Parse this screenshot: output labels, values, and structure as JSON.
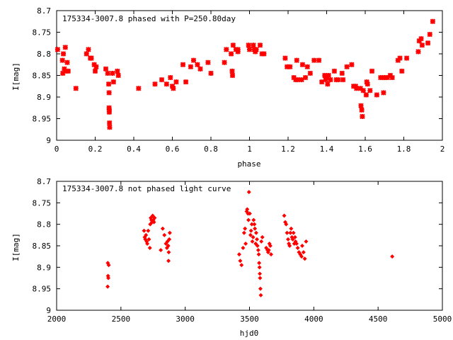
{
  "colors": {
    "series": "#ff0000",
    "axis": "#000000",
    "background": "#ffffff"
  },
  "chart_data": [
    {
      "type": "scatter",
      "title": "175334-3007.8 phased with P=250.80day",
      "xlabel": "phase",
      "ylabel": "I[mag]",
      "xlim": [
        0,
        2
      ],
      "ylim": [
        9,
        8.7
      ],
      "y_inverted": true,
      "grid": false,
      "marker": "cross",
      "x_ticks": [
        "0",
        "0.2",
        "0.4",
        "0.6",
        "0.8",
        "1",
        "1.2",
        "1.4",
        "1.6",
        "1.8",
        "2"
      ],
      "y_ticks": [
        "8.7",
        "8.75",
        "8.8",
        "8.85",
        "8.9",
        "8.95",
        "9"
      ],
      "points": [
        [
          0.005,
          8.79
        ],
        [
          0.03,
          8.815
        ],
        [
          0.032,
          8.845
        ],
        [
          0.035,
          8.8
        ],
        [
          0.04,
          8.835
        ],
        [
          0.045,
          8.785
        ],
        [
          0.05,
          8.84
        ],
        [
          0.055,
          8.82
        ],
        [
          0.06,
          8.84
        ],
        [
          0.1,
          8.88
        ],
        [
          0.155,
          8.8
        ],
        [
          0.165,
          8.79
        ],
        [
          0.175,
          8.81
        ],
        [
          0.18,
          8.81
        ],
        [
          0.195,
          8.825
        ],
        [
          0.2,
          8.84
        ],
        [
          0.205,
          8.83
        ],
        [
          0.255,
          8.835
        ],
        [
          0.265,
          8.845
        ],
        [
          0.27,
          8.87
        ],
        [
          0.272,
          8.89
        ],
        [
          0.272,
          8.925
        ],
        [
          0.273,
          8.93
        ],
        [
          0.273,
          8.935
        ],
        [
          0.274,
          8.96
        ],
        [
          0.275,
          8.97
        ],
        [
          0.29,
          8.845
        ],
        [
          0.295,
          8.865
        ],
        [
          0.315,
          8.84
        ],
        [
          0.32,
          8.85
        ],
        [
          0.425,
          8.88
        ],
        [
          0.51,
          8.87
        ],
        [
          0.545,
          8.86
        ],
        [
          0.57,
          8.87
        ],
        [
          0.59,
          8.855
        ],
        [
          0.6,
          8.875
        ],
        [
          0.605,
          8.88
        ],
        [
          0.62,
          8.865
        ],
        [
          0.655,
          8.825
        ],
        [
          0.67,
          8.865
        ],
        [
          0.695,
          8.83
        ],
        [
          0.71,
          8.815
        ],
        [
          0.73,
          8.825
        ],
        [
          0.745,
          8.835
        ],
        [
          0.785,
          8.82
        ],
        [
          0.8,
          8.845
        ],
        [
          0.87,
          8.82
        ],
        [
          0.88,
          8.79
        ],
        [
          0.905,
          8.8
        ],
        [
          0.91,
          8.84
        ],
        [
          0.912,
          8.85
        ],
        [
          0.915,
          8.78
        ],
        [
          0.93,
          8.79
        ],
        [
          0.94,
          8.795
        ],
        [
          0.94,
          8.79
        ],
        [
          0.995,
          8.78
        ],
        [
          1.0,
          8.79
        ],
        [
          1.02,
          8.78
        ],
        [
          1.025,
          8.79
        ],
        [
          1.03,
          8.795
        ],
        [
          1.035,
          8.79
        ],
        [
          1.055,
          8.78
        ],
        [
          1.065,
          8.8
        ],
        [
          1.075,
          8.8
        ],
        [
          1.185,
          8.81
        ],
        [
          1.195,
          8.83
        ],
        [
          1.21,
          8.83
        ],
        [
          1.23,
          8.855
        ],
        [
          1.24,
          8.86
        ],
        [
          1.245,
          8.815
        ],
        [
          1.25,
          8.86
        ],
        [
          1.27,
          8.86
        ],
        [
          1.275,
          8.825
        ],
        [
          1.29,
          8.855
        ],
        [
          1.3,
          8.83
        ],
        [
          1.315,
          8.845
        ],
        [
          1.335,
          8.815
        ],
        [
          1.36,
          8.815
        ],
        [
          1.375,
          8.865
        ],
        [
          1.39,
          8.85
        ],
        [
          1.395,
          8.86
        ],
        [
          1.4,
          8.855
        ],
        [
          1.405,
          8.87
        ],
        [
          1.41,
          8.85
        ],
        [
          1.42,
          8.86
        ],
        [
          1.44,
          8.84
        ],
        [
          1.45,
          8.86
        ],
        [
          1.46,
          8.86
        ],
        [
          1.48,
          8.845
        ],
        [
          1.485,
          8.86
        ],
        [
          1.505,
          8.83
        ],
        [
          1.53,
          8.825
        ],
        [
          1.54,
          8.875
        ],
        [
          1.55,
          8.875
        ],
        [
          1.555,
          8.88
        ],
        [
          1.575,
          8.88
        ],
        [
          1.578,
          8.92
        ],
        [
          1.582,
          8.93
        ],
        [
          1.585,
          8.945
        ],
        [
          1.59,
          8.885
        ],
        [
          1.605,
          8.895
        ],
        [
          1.608,
          8.865
        ],
        [
          1.612,
          8.87
        ],
        [
          1.625,
          8.885
        ],
        [
          1.635,
          8.84
        ],
        [
          1.66,
          8.895
        ],
        [
          1.68,
          8.855
        ],
        [
          1.69,
          8.855
        ],
        [
          1.695,
          8.89
        ],
        [
          1.7,
          8.855
        ],
        [
          1.715,
          8.855
        ],
        [
          1.73,
          8.85
        ],
        [
          1.74,
          8.855
        ],
        [
          1.77,
          8.815
        ],
        [
          1.78,
          8.81
        ],
        [
          1.79,
          8.84
        ],
        [
          1.815,
          8.81
        ],
        [
          1.875,
          8.795
        ],
        [
          1.88,
          8.77
        ],
        [
          1.89,
          8.765
        ],
        [
          1.895,
          8.78
        ],
        [
          1.925,
          8.775
        ],
        [
          1.935,
          8.755
        ],
        [
          1.95,
          8.725
        ]
      ]
    },
    {
      "type": "scatter",
      "title": "175334-3007.8 not phased light curve",
      "xlabel": "hjd0",
      "ylabel": "I[mag]",
      "xlim": [
        2000,
        5000
      ],
      "ylim": [
        9,
        8.7
      ],
      "y_inverted": true,
      "grid": false,
      "marker": "small-cross",
      "x_ticks": [
        "2000",
        "2500",
        "3000",
        "3500",
        "4000",
        "4500",
        "5000"
      ],
      "y_ticks": [
        "8.7",
        "8.75",
        "8.8",
        "8.85",
        "8.9",
        "8.95",
        "9"
      ],
      "points": [
        [
          2398,
          8.89
        ],
        [
          2400,
          8.92
        ],
        [
          2402,
          8.925
        ],
        [
          2397,
          8.945
        ],
        [
          2405,
          8.895
        ],
        [
          2680,
          8.815
        ],
        [
          2685,
          8.83
        ],
        [
          2690,
          8.835
        ],
        [
          2695,
          8.825
        ],
        [
          2700,
          8.84
        ],
        [
          2705,
          8.845
        ],
        [
          2712,
          8.815
        ],
        [
          2718,
          8.835
        ],
        [
          2725,
          8.855
        ],
        [
          2728,
          8.8
        ],
        [
          2732,
          8.785
        ],
        [
          2737,
          8.79
        ],
        [
          2742,
          8.795
        ],
        [
          2747,
          8.78
        ],
        [
          2752,
          8.79
        ],
        [
          2757,
          8.795
        ],
        [
          2762,
          8.785
        ],
        [
          2810,
          8.86
        ],
        [
          2825,
          8.81
        ],
        [
          2838,
          8.825
        ],
        [
          2850,
          8.845
        ],
        [
          2858,
          8.855
        ],
        [
          2862,
          8.84
        ],
        [
          2868,
          8.85
        ],
        [
          2872,
          8.865
        ],
        [
          2876,
          8.835
        ],
        [
          2880,
          8.82
        ],
        [
          2870,
          8.885
        ],
        [
          3420,
          8.87
        ],
        [
          3428,
          8.885
        ],
        [
          3438,
          8.895
        ],
        [
          3450,
          8.855
        ],
        [
          3458,
          8.82
        ],
        [
          3465,
          8.81
        ],
        [
          3470,
          8.845
        ],
        [
          3478,
          8.77
        ],
        [
          3482,
          8.765
        ],
        [
          3488,
          8.775
        ],
        [
          3492,
          8.79
        ],
        [
          3496,
          8.725
        ],
        [
          3502,
          8.775
        ],
        [
          3508,
          8.825
        ],
        [
          3512,
          8.815
        ],
        [
          3518,
          8.8
        ],
        [
          3522,
          8.84
        ],
        [
          3528,
          8.83
        ],
        [
          3532,
          8.79
        ],
        [
          3538,
          8.8
        ],
        [
          3542,
          8.81
        ],
        [
          3548,
          8.845
        ],
        [
          3552,
          8.82
        ],
        [
          3558,
          8.835
        ],
        [
          3562,
          8.85
        ],
        [
          3568,
          8.86
        ],
        [
          3572,
          8.87
        ],
        [
          3575,
          8.89
        ],
        [
          3578,
          8.9
        ],
        [
          3580,
          8.915
        ],
        [
          3582,
          8.925
        ],
        [
          3585,
          8.95
        ],
        [
          3588,
          8.965
        ],
        [
          3592,
          8.84
        ],
        [
          3600,
          8.83
        ],
        [
          3630,
          8.855
        ],
        [
          3640,
          8.86
        ],
        [
          3645,
          8.865
        ],
        [
          3650,
          8.86
        ],
        [
          3655,
          8.845
        ],
        [
          3662,
          8.85
        ],
        [
          3668,
          8.87
        ],
        [
          3770,
          8.78
        ],
        [
          3778,
          8.795
        ],
        [
          3785,
          8.8
        ],
        [
          3792,
          8.82
        ],
        [
          3800,
          8.835
        ],
        [
          3806,
          8.845
        ],
        [
          3812,
          8.85
        ],
        [
          3818,
          8.82
        ],
        [
          3824,
          8.81
        ],
        [
          3830,
          8.83
        ],
        [
          3836,
          8.835
        ],
        [
          3842,
          8.82
        ],
        [
          3848,
          8.845
        ],
        [
          3854,
          8.83
        ],
        [
          3858,
          8.84
        ],
        [
          3866,
          8.845
        ],
        [
          3875,
          8.855
        ],
        [
          3885,
          8.865
        ],
        [
          3895,
          8.87
        ],
        [
          3905,
          8.875
        ],
        [
          3910,
          8.85
        ],
        [
          3920,
          8.865
        ],
        [
          3930,
          8.88
        ],
        [
          3940,
          8.84
        ],
        [
          4610,
          8.875
        ]
      ]
    }
  ]
}
